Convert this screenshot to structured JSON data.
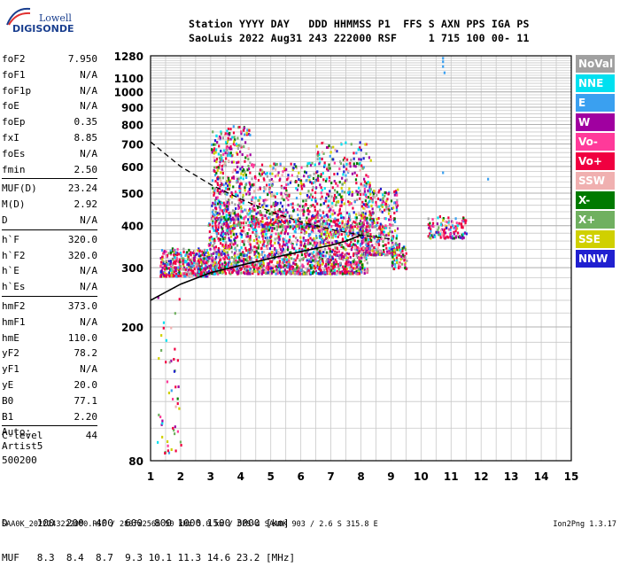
{
  "logo": {
    "top": "Lowell",
    "bottom": "DIGISONDE"
  },
  "header": {
    "line1": "Station YYYY DAY   DDD HHMMSS P1  FFS S AXN PPS IGA PS",
    "line2": "SaoLuis 2022 Aug31 243 222000 RSF     1 715 100 00- 11"
  },
  "parameters": [
    {
      "name": "foF2",
      "value": "7.950"
    },
    {
      "name": "foF1",
      "value": "N/A"
    },
    {
      "name": "foF1p",
      "value": "N/A"
    },
    {
      "name": "foE",
      "value": "N/A"
    },
    {
      "name": "foEp",
      "value": "0.35"
    },
    {
      "name": "fxI",
      "value": "8.85"
    },
    {
      "name": "foEs",
      "value": "N/A"
    },
    {
      "name": "fmin",
      "value": "2.50"
    },
    {
      "name": "MUF(D)",
      "value": "23.24"
    },
    {
      "name": "M(D)",
      "value": "2.92"
    },
    {
      "name": "D",
      "value": "N/A"
    },
    {
      "name": "h`F",
      "value": "320.0"
    },
    {
      "name": "h`F2",
      "value": "320.0"
    },
    {
      "name": "h`E",
      "value": "N/A"
    },
    {
      "name": "h`Es",
      "value": "N/A"
    },
    {
      "name": "hmF2",
      "value": "373.0"
    },
    {
      "name": "hmF1",
      "value": "N/A"
    },
    {
      "name": "hmE",
      "value": "110.0"
    },
    {
      "name": "yF2",
      "value": "78.2"
    },
    {
      "name": "yF1",
      "value": "N/A"
    },
    {
      "name": "yE",
      "value": "20.0"
    },
    {
      "name": "B0",
      "value": "77.1"
    },
    {
      "name": "B1",
      "value": "2.20"
    },
    {
      "name": "C-level",
      "value": "44"
    }
  ],
  "notes": [
    "Auto:",
    "Artist5",
    "500200"
  ],
  "d_muf": {
    "d_line": "D     100  200  400  600  800 1000 1500 3000 [km]",
    "muf_line": "MUF   8.3  8.4  8.7  9.3 10.1 11.3 14.6 23.2 [MHz]"
  },
  "footer": {
    "left": "SAA0K_2022243222000.RSF / 280fx256h 50 kHz 5.0 km / DPS-4 SAA0K 903 / 2.6 S 315.8 E",
    "right": "Ion2Png 1.3.17"
  },
  "legend": [
    {
      "label": "NoVal",
      "color": "#a0a0a0"
    },
    {
      "label": "NNE",
      "color": "#00e0f0"
    },
    {
      "label": "E",
      "color": "#3aa0f0"
    },
    {
      "label": "W",
      "color": "#a000a0"
    },
    {
      "label": "Vo-",
      "color": "#ff3a9a"
    },
    {
      "label": "Vo+",
      "color": "#f00040"
    },
    {
      "label": "SSW",
      "color": "#f0b0b0"
    },
    {
      "label": "X-",
      "color": "#007a00"
    },
    {
      "label": "X+",
      "color": "#70b060"
    },
    {
      "label": "SSE",
      "color": "#d0d000"
    },
    {
      "label": "NNW",
      "color": "#2020d0"
    }
  ],
  "chart_data": {
    "type": "scatter",
    "title": "",
    "xlabel": "",
    "ylabel": "",
    "xlim": [
      1,
      15
    ],
    "ylim": [
      80,
      1280
    ],
    "y_scale": "log",
    "x_ticks": [
      1,
      2,
      3,
      4,
      5,
      6,
      7,
      8,
      9,
      10,
      11,
      12,
      13,
      14,
      15
    ],
    "y_ticks": [
      80,
      200,
      300,
      400,
      500,
      600,
      700,
      800,
      900,
      1000,
      1100,
      1280
    ],
    "grid": true,
    "legend_position": "right",
    "series": [
      {
        "name": "Vo+",
        "description_points": [
          [
            1.3,
            315
          ],
          [
            2,
            320
          ],
          [
            3,
            330
          ],
          [
            4,
            345
          ],
          [
            5,
            355
          ],
          [
            6,
            365
          ],
          [
            7,
            380
          ],
          [
            8,
            395
          ],
          [
            9,
            400
          ],
          [
            10.5,
            395
          ]
        ]
      },
      {
        "name": "W",
        "description_points": [
          [
            1.5,
            320
          ],
          [
            2.5,
            330
          ],
          [
            3.5,
            700
          ],
          [
            4,
            820
          ],
          [
            5,
            600
          ],
          [
            6,
            620
          ],
          [
            7,
            640
          ],
          [
            8,
            700
          ],
          [
            9,
            520
          ]
        ]
      },
      {
        "name": "NNW",
        "description_points": [
          [
            1.2,
            90
          ],
          [
            1.6,
            100
          ],
          [
            2.2,
            310
          ],
          [
            3,
            300
          ],
          [
            5,
            330
          ],
          [
            8,
            360
          ]
        ]
      }
    ],
    "curves": [
      {
        "name": "dashed-model",
        "x": [
          1,
          2,
          3,
          4,
          5,
          6,
          7,
          8,
          9
        ],
        "y": [
          710,
          600,
          530,
          480,
          440,
          410,
          390,
          375,
          365
        ]
      },
      {
        "name": "virtual-height-trace",
        "x": [
          1,
          2,
          3,
          4,
          5,
          6,
          7,
          7.5,
          8
        ],
        "y": [
          240,
          268,
          290,
          305,
          320,
          335,
          350,
          360,
          375
        ]
      }
    ]
  }
}
